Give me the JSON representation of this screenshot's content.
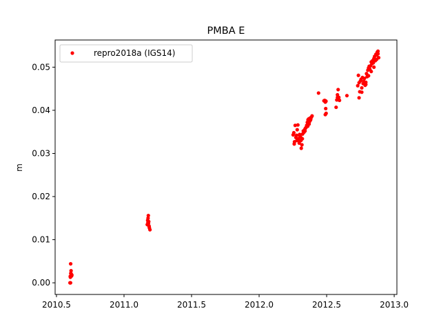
{
  "chart_data": {
    "type": "scatter",
    "title": "PMBA E",
    "xlabel": "",
    "ylabel": "m",
    "xlim": [
      2010.49,
      2013.02
    ],
    "ylim": [
      -0.0027,
      0.0563
    ],
    "xticks": [
      2010.5,
      2011.0,
      2011.5,
      2012.0,
      2012.5,
      2013.0
    ],
    "xtick_labels": [
      "2010.5",
      "2011.0",
      "2011.5",
      "2012.0",
      "2012.5",
      "2013.0"
    ],
    "yticks": [
      0.0,
      0.01,
      0.02,
      0.03,
      0.04,
      0.05
    ],
    "ytick_labels": [
      "0.00",
      "0.01",
      "0.02",
      "0.03",
      "0.04",
      "0.05"
    ],
    "grid": false,
    "legend_position": "upper-left",
    "series": [
      {
        "name": "repro2018a (IGS14)",
        "color": "#ff0000",
        "marker": "circle",
        "x": [
          2010.6,
          2010.602,
          2010.605,
          2010.608,
          2010.61,
          2010.612,
          2010.614,
          2010.604,
          2010.606,
          2010.603,
          2011.172,
          2011.175,
          2011.178,
          2011.18,
          2011.183,
          2011.185,
          2011.188,
          2011.177,
          2011.181,
          2011.186,
          2011.192,
          2012.252,
          2012.257,
          2012.262,
          2012.267,
          2012.272,
          2012.277,
          2012.282,
          2012.287,
          2012.292,
          2012.297,
          2012.302,
          2012.307,
          2012.312,
          2012.317,
          2012.322,
          2012.327,
          2012.332,
          2012.337,
          2012.342,
          2012.347,
          2012.352,
          2012.357,
          2012.362,
          2012.367,
          2012.372,
          2012.377,
          2012.382,
          2012.387,
          2012.392,
          2012.26,
          2012.28,
          2012.3,
          2012.31,
          2012.32,
          2012.34,
          2012.36,
          2012.37,
          2012.38,
          2012.29,
          2012.44,
          2012.48,
          2012.485,
          2012.49,
          2012.493,
          2012.496,
          2012.49,
          2012.492,
          2012.495,
          2012.57,
          2012.575,
          2012.58,
          2012.585,
          2012.59,
          2012.595,
          2012.58,
          2012.59,
          2012.65,
          2012.73,
          2012.735,
          2012.74,
          2012.745,
          2012.75,
          2012.755,
          2012.76,
          2012.765,
          2012.77,
          2012.775,
          2012.78,
          2012.785,
          2012.79,
          2012.795,
          2012.8,
          2012.805,
          2012.81,
          2012.815,
          2012.82,
          2012.825,
          2012.83,
          2012.835,
          2012.84,
          2012.845,
          2012.85,
          2012.855,
          2012.86,
          2012.865,
          2012.87,
          2012.875,
          2012.88,
          2012.885,
          2012.74,
          2012.76,
          2012.79,
          2012.81,
          2012.83,
          2012.85,
          2012.87,
          2012.88
        ],
        "y": [
          0.0,
          0.0015,
          0.0044,
          0.0028,
          0.002,
          0.0016,
          0.0018,
          0.0,
          0.0022,
          0.0013,
          0.0135,
          0.0145,
          0.015,
          0.0156,
          0.0142,
          0.0132,
          0.0127,
          0.014,
          0.0138,
          0.013,
          0.0123,
          0.0343,
          0.0348,
          0.0327,
          0.0365,
          0.0337,
          0.0342,
          0.0355,
          0.0366,
          0.0331,
          0.0324,
          0.034,
          0.0338,
          0.0312,
          0.032,
          0.0345,
          0.0352,
          0.0349,
          0.0355,
          0.0358,
          0.036,
          0.0365,
          0.0372,
          0.0378,
          0.038,
          0.0373,
          0.0382,
          0.0379,
          0.0384,
          0.0387,
          0.0322,
          0.033,
          0.0344,
          0.033,
          0.0334,
          0.0352,
          0.0363,
          0.0368,
          0.0377,
          0.0334,
          0.044,
          0.0422,
          0.0423,
          0.0419,
          0.0404,
          0.0393,
          0.039,
          0.0422,
          0.0421,
          0.0407,
          0.0424,
          0.0436,
          0.0448,
          0.043,
          0.0423,
          0.043,
          0.0425,
          0.0434,
          0.0457,
          0.0481,
          0.0464,
          0.0443,
          0.0468,
          0.0472,
          0.0442,
          0.0476,
          0.0462,
          0.0467,
          0.0474,
          0.0458,
          0.0465,
          0.0485,
          0.0478,
          0.0493,
          0.0498,
          0.0502,
          0.0495,
          0.0503,
          0.0512,
          0.0508,
          0.0515,
          0.051,
          0.052,
          0.0525,
          0.0515,
          0.053,
          0.0528,
          0.0535,
          0.0537,
          0.0522,
          0.0429,
          0.0452,
          0.046,
          0.048,
          0.049,
          0.05,
          0.0518,
          0.0531
        ]
      }
    ]
  }
}
